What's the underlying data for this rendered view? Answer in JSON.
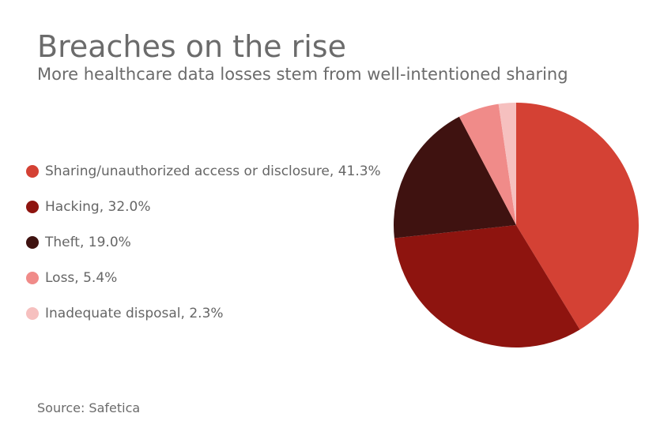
{
  "title": "Breaches on the rise",
  "subtitle": "More healthcare data losses stem from well-intentioned sharing",
  "source": "Source: Safetica",
  "chart_data": {
    "type": "pie",
    "title": "Breaches on the rise",
    "subtitle": "More healthcare data losses stem from well-intentioned sharing",
    "start_angle_deg": 0,
    "direction": "clockwise",
    "legend_position": "left",
    "slices": [
      {
        "label": "Sharing/unauthorized access or disclosure",
        "value": 41.3,
        "display": "41.3%",
        "color": "#d44134"
      },
      {
        "label": "Hacking",
        "value": 32.0,
        "display": "32.0%",
        "color": "#8e140f"
      },
      {
        "label": "Theft",
        "value": 19.0,
        "display": "19.0%",
        "color": "#3f1210"
      },
      {
        "label": "Loss",
        "value": 5.4,
        "display": "5.4%",
        "color": "#f08b89"
      },
      {
        "label": "Inadequate disposal",
        "value": 2.3,
        "display": "2.3%",
        "color": "#f6c0bf"
      }
    ]
  }
}
